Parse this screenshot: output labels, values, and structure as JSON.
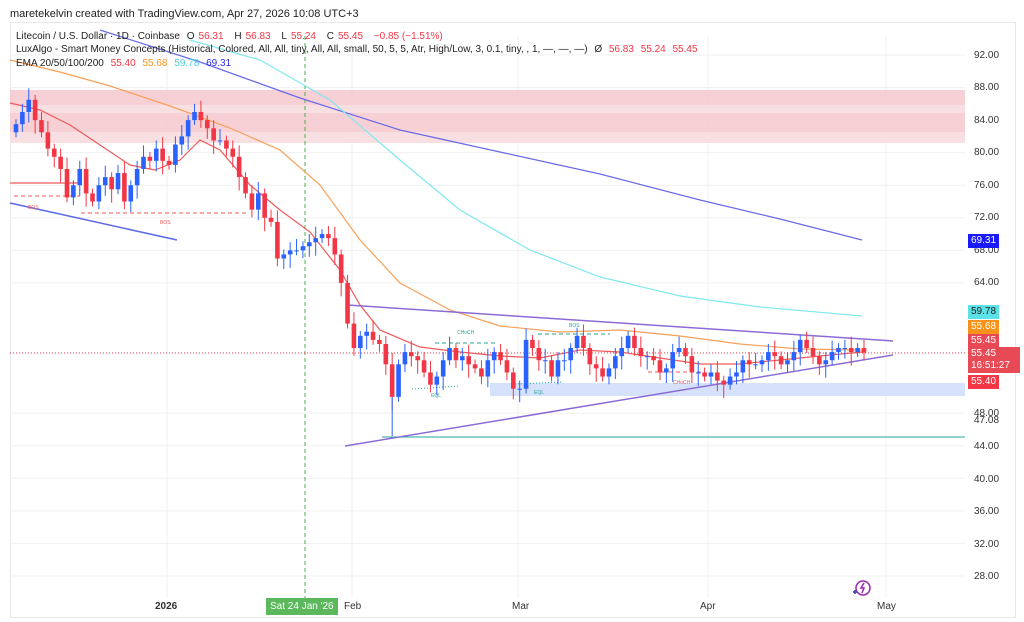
{
  "caption": "maretekelvin created with TradingView.com, Apr 27, 2026 10:08 UTC+3",
  "legend": {
    "symbol_line": "Litecoin / U.S. Dollar · 1D · Coinbase",
    "o_label": "O",
    "o_val": "56.31",
    "h_label": "H",
    "h_val": "56.83",
    "l_label": "L",
    "l_val": "55.24",
    "c_label": "C",
    "c_val": "55.45",
    "change": "−0.85 (−1.51%)",
    "indicator_line": "LuxAlgo - Smart Money Concepts (Historical, Colored, All, All, tiny, All, All, small, 50, 5, 5, Atr, High/Low, 3, 0.1, tiny, , 1, —, —, —)",
    "indicator_eye": "Ø",
    "indicator_vals": [
      "56.83",
      "55.24",
      "55.45"
    ],
    "ema_label": "EMA 20/50/100/200",
    "ema_vals": [
      "55.40",
      "55.68",
      "59.78",
      "69.31"
    ]
  },
  "price_axis": [
    "92.00",
    "88.00",
    "84.00",
    "80.00",
    "76.00",
    "72.00",
    "68.00",
    "64.00",
    "48.00",
    "47.08",
    "44.00",
    "40.00",
    "36.00",
    "32.00",
    "28.00"
  ],
  "price_tags": {
    "ema200": "69.31",
    "ema100": "59.78",
    "ema50": "55.68",
    "smc": "55.45",
    "last": "55.45",
    "countdown": "16:51:27",
    "ema20": "55.40"
  },
  "time_axis": {
    "y2026": "2026",
    "feb": "Feb",
    "mar": "Mar",
    "apr": "Apr",
    "may": "May",
    "crosshair": "Sat 24 Jan '26"
  },
  "labels": {
    "bos": "BOS",
    "choch": "CHoCH",
    "eql": "EQL"
  },
  "colors": {
    "up": "#2962ff",
    "down": "#f23645",
    "ema20": "#f05a5a",
    "ema50": "#f7a05a",
    "ema100": "#7fe8f0",
    "ema200": "#6a6ae8",
    "supply": "#f4c2c6",
    "demand": "#d6e2fb",
    "wedge": "#8c6bd6",
    "crosshair": "#4caf50"
  },
  "chart_data": {
    "type": "candlestick",
    "title": "Litecoin / U.S. Dollar · 1D · Coinbase",
    "ohlc_last": {
      "open": 56.31,
      "high": 56.83,
      "low": 55.24,
      "close": 55.45,
      "change": -0.85,
      "change_pct": -1.51
    },
    "ema": {
      "ema20": 55.4,
      "ema50": 55.68,
      "ema100": 59.78,
      "ema200": 69.31
    },
    "y_ticks": [
      92,
      88,
      84,
      80,
      76,
      72,
      68,
      64,
      48,
      44,
      40,
      36,
      32,
      28
    ],
    "ylim": [
      26,
      94
    ],
    "x_ticks": [
      "2026",
      "Feb",
      "Mar",
      "Apr",
      "May"
    ],
    "annotations": [
      "BOS",
      "BOS",
      "CHoCH",
      "BOS",
      "EQL",
      "EQL",
      "CHoCH",
      "Symmetrical triangle",
      "Supply zones 81.5–88",
      "Demand zone ~50.7–52.5",
      "Low 45.2"
    ],
    "approx_closes": [
      83.5,
      85,
      86.5,
      84,
      82.5,
      80.5,
      79.5,
      78,
      74.5,
      76,
      78,
      75,
      74,
      76,
      77,
      75.5,
      77.5,
      74,
      76,
      78,
      79.5,
      79,
      80.5,
      79,
      78.5,
      81,
      82,
      84,
      85,
      84,
      83,
      81.5,
      81.5,
      80.5,
      79.5,
      77,
      75,
      73,
      75,
      72,
      71.5,
      67,
      67.5,
      68,
      68,
      68.5,
      69,
      69.5,
      70,
      69.5,
      67.5,
      64,
      59,
      56,
      57.5,
      58,
      57,
      56.5,
      54,
      50,
      54,
      55.5,
      55,
      54.5,
      53,
      51.5,
      52.5,
      54.5,
      56,
      54.5,
      55,
      54,
      53.5,
      52.5,
      54.5,
      55.5,
      54.5,
      53,
      51,
      51,
      57,
      56,
      54.5,
      54.5,
      52.5,
      54.5,
      54.5,
      56,
      57.5,
      56,
      54,
      53.5,
      52.5,
      53.5,
      55,
      56,
      57.5,
      56,
      55,
      55,
      54.5,
      53,
      53.5,
      55.5,
      56,
      55,
      53,
      53,
      52.5,
      53,
      52,
      51.5,
      52.5,
      53,
      54.5,
      54,
      54,
      54.5,
      55.5,
      55,
      54,
      54.5,
      55.5,
      57,
      56,
      55,
      54,
      54.5,
      55.5,
      56,
      56,
      55.5,
      56,
      55.45
    ]
  }
}
